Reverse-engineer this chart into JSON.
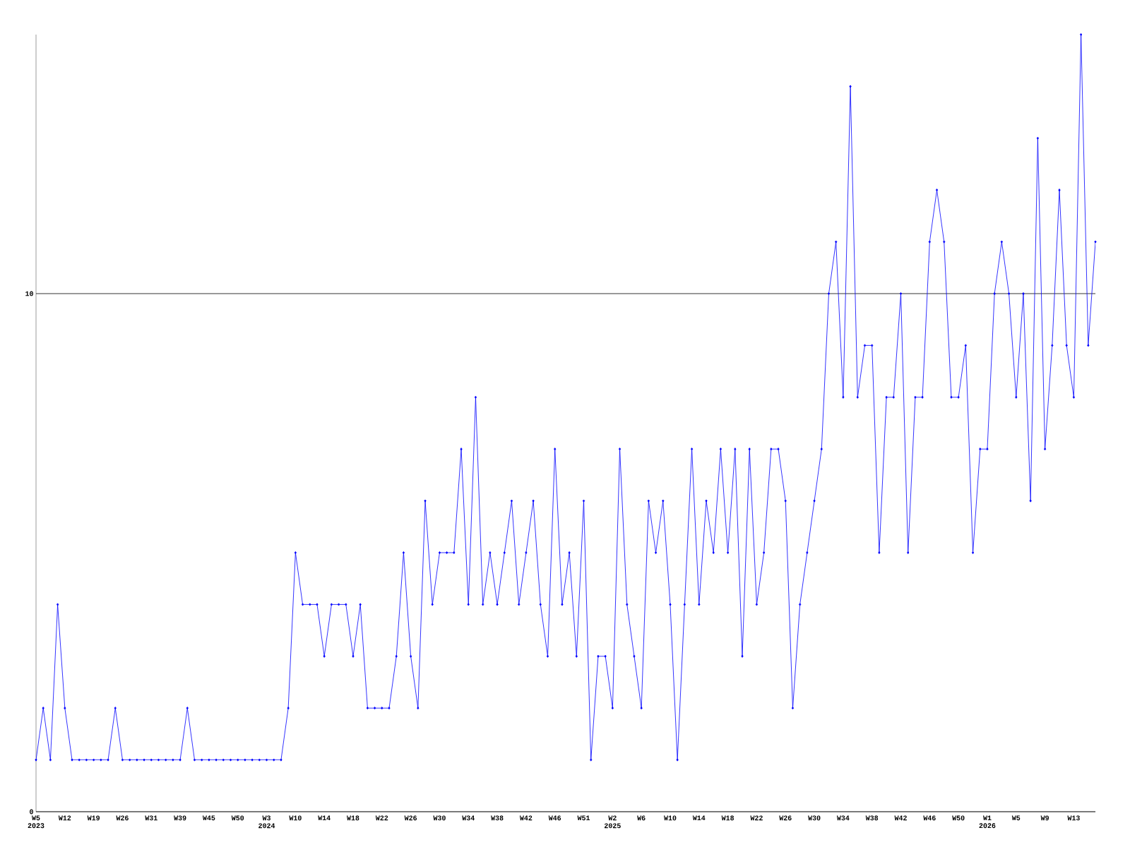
{
  "chart_data": {
    "type": "line",
    "color": "#0000ff",
    "marker": "diamond",
    "line_style": "solid",
    "grid": "y",
    "ylim": [
      0,
      15
    ],
    "yticks": [
      0,
      10
    ],
    "categories": [
      "W5 2023",
      null,
      null,
      null,
      "W12",
      null,
      null,
      null,
      "W19",
      null,
      null,
      null,
      "W26",
      null,
      null,
      null,
      "W31",
      null,
      null,
      null,
      "W39",
      null,
      null,
      null,
      "W45",
      null,
      null,
      null,
      "W50",
      null,
      null,
      null,
      "W3 2024",
      null,
      null,
      null,
      "W10",
      null,
      null,
      null,
      "W14",
      null,
      null,
      null,
      "W18",
      null,
      null,
      null,
      "W22",
      null,
      null,
      null,
      "W26",
      null,
      null,
      null,
      "W30",
      null,
      null,
      null,
      "W34",
      null,
      null,
      null,
      "W38",
      null,
      null,
      null,
      "W42",
      null,
      null,
      null,
      "W46",
      null,
      null,
      null,
      "W51",
      null,
      null,
      null,
      "W2 2025",
      null,
      null,
      null,
      "W6",
      null,
      null,
      null,
      "W10",
      null,
      null,
      null,
      "W14",
      null,
      null,
      null,
      "W18",
      null,
      null,
      null,
      "W22",
      null,
      null,
      null,
      "W26",
      null,
      null,
      null,
      "W30",
      null,
      null,
      null,
      "W34",
      null,
      null,
      null,
      "W38",
      null,
      null,
      null,
      "W42",
      null,
      null,
      null,
      "W46",
      null,
      null,
      null,
      "W50",
      null,
      null,
      null,
      "W1 2026",
      null,
      null,
      null,
      "W5",
      null,
      null,
      null,
      "W9",
      null,
      null,
      null,
      "W13",
      null,
      null,
      null
    ],
    "values": [
      1,
      2,
      1,
      4,
      2,
      1,
      1,
      1,
      1,
      1,
      1,
      2,
      1,
      1,
      1,
      1,
      1,
      1,
      1,
      1,
      1,
      2,
      1,
      1,
      1,
      1,
      1,
      1,
      1,
      1,
      1,
      1,
      1,
      1,
      1,
      2,
      5,
      4,
      4,
      4,
      3,
      4,
      4,
      4,
      3,
      4,
      2,
      2,
      2,
      2,
      3,
      5,
      3,
      2,
      6,
      4,
      5,
      5,
      5,
      7,
      4,
      8,
      4,
      5,
      4,
      5,
      6,
      4,
      5,
      6,
      4,
      3,
      7,
      4,
      5,
      3,
      6,
      1,
      3,
      3,
      2,
      7,
      4,
      3,
      2,
      6,
      5,
      6,
      4,
      1,
      4,
      7,
      4,
      6,
      5,
      7,
      5,
      7,
      3,
      7,
      4,
      5,
      7,
      7,
      6,
      2,
      4,
      5,
      6,
      7,
      10,
      11,
      8,
      14,
      8,
      9,
      9,
      5,
      8,
      8,
      10,
      5,
      8,
      8,
      11,
      12,
      11,
      8,
      8,
      9,
      5,
      7,
      7,
      10,
      11,
      10,
      8,
      10,
      6,
      13,
      7,
      9,
      12,
      9,
      8,
      15,
      9,
      11
    ]
  }
}
